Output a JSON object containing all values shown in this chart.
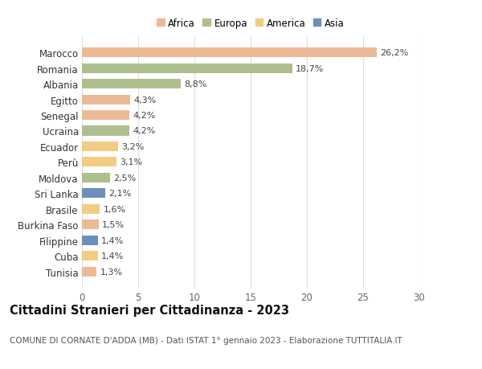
{
  "categories": [
    "Tunisia",
    "Cuba",
    "Filippine",
    "Burkina Faso",
    "Brasile",
    "Sri Lanka",
    "Moldova",
    "Perù",
    "Ecuador",
    "Ucraina",
    "Senegal",
    "Egitto",
    "Albania",
    "Romania",
    "Marocco"
  ],
  "values": [
    1.3,
    1.4,
    1.4,
    1.5,
    1.6,
    2.1,
    2.5,
    3.1,
    3.2,
    4.2,
    4.2,
    4.3,
    8.8,
    18.7,
    26.2
  ],
  "labels": [
    "1,3%",
    "1,4%",
    "1,4%",
    "1,5%",
    "1,6%",
    "2,1%",
    "2,5%",
    "3,1%",
    "3,2%",
    "4,2%",
    "4,2%",
    "4,3%",
    "8,8%",
    "18,7%",
    "26,2%"
  ],
  "continents": [
    "Africa",
    "America",
    "Asia",
    "Africa",
    "America",
    "Asia",
    "Europa",
    "America",
    "America",
    "Europa",
    "Africa",
    "Africa",
    "Europa",
    "Europa",
    "Africa"
  ],
  "colors": {
    "Africa": "#EDBA96",
    "Europa": "#AEBF8E",
    "America": "#F2CC82",
    "Asia": "#6B8FBA"
  },
  "legend_items": [
    "Africa",
    "Europa",
    "America",
    "Asia"
  ],
  "legend_colors": [
    "#EDBA96",
    "#AEBF8E",
    "#F2CC82",
    "#6B8FBA"
  ],
  "title": "Cittadini Stranieri per Cittadinanza - 2023",
  "subtitle": "COMUNE DI CORNATE D'ADDA (MB) - Dati ISTAT 1° gennaio 2023 - Elaborazione TUTTITALIA.IT",
  "xlim": [
    0,
    30
  ],
  "xticks": [
    0,
    5,
    10,
    15,
    20,
    25,
    30
  ],
  "grid_color": "#dddddd",
  "background_color": "#ffffff",
  "bar_height": 0.62,
  "label_fontsize": 8,
  "title_fontsize": 10.5,
  "subtitle_fontsize": 7.5,
  "ytick_fontsize": 8.5,
  "xtick_fontsize": 8.5
}
